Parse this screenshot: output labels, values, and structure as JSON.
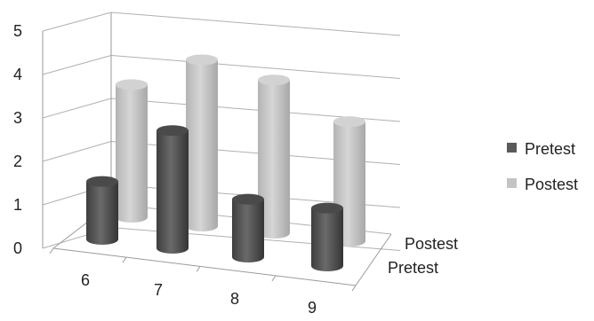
{
  "chart_data": {
    "type": "bar",
    "variant": "3d-cylinder",
    "categories": [
      "6",
      "7",
      "8",
      "9"
    ],
    "series": [
      {
        "name": "Pretest",
        "values": [
          1.55,
          3.15,
          1.55,
          1.55
        ]
      },
      {
        "name": "Postest",
        "values": [
          3.55,
          4.45,
          4.1,
          3.2
        ]
      }
    ],
    "ylim": [
      0,
      5
    ],
    "yticks": [
      "0",
      "1",
      "2",
      "3",
      "4",
      "5"
    ],
    "depth_labels": [
      "Postest",
      "Pretest"
    ],
    "legend": {
      "position": "right",
      "entries": [
        "Pretest",
        "Postest"
      ]
    },
    "grid": true,
    "colors": {
      "Pretest": "#5a5a5a",
      "Postest": "#c4c4c4"
    }
  }
}
